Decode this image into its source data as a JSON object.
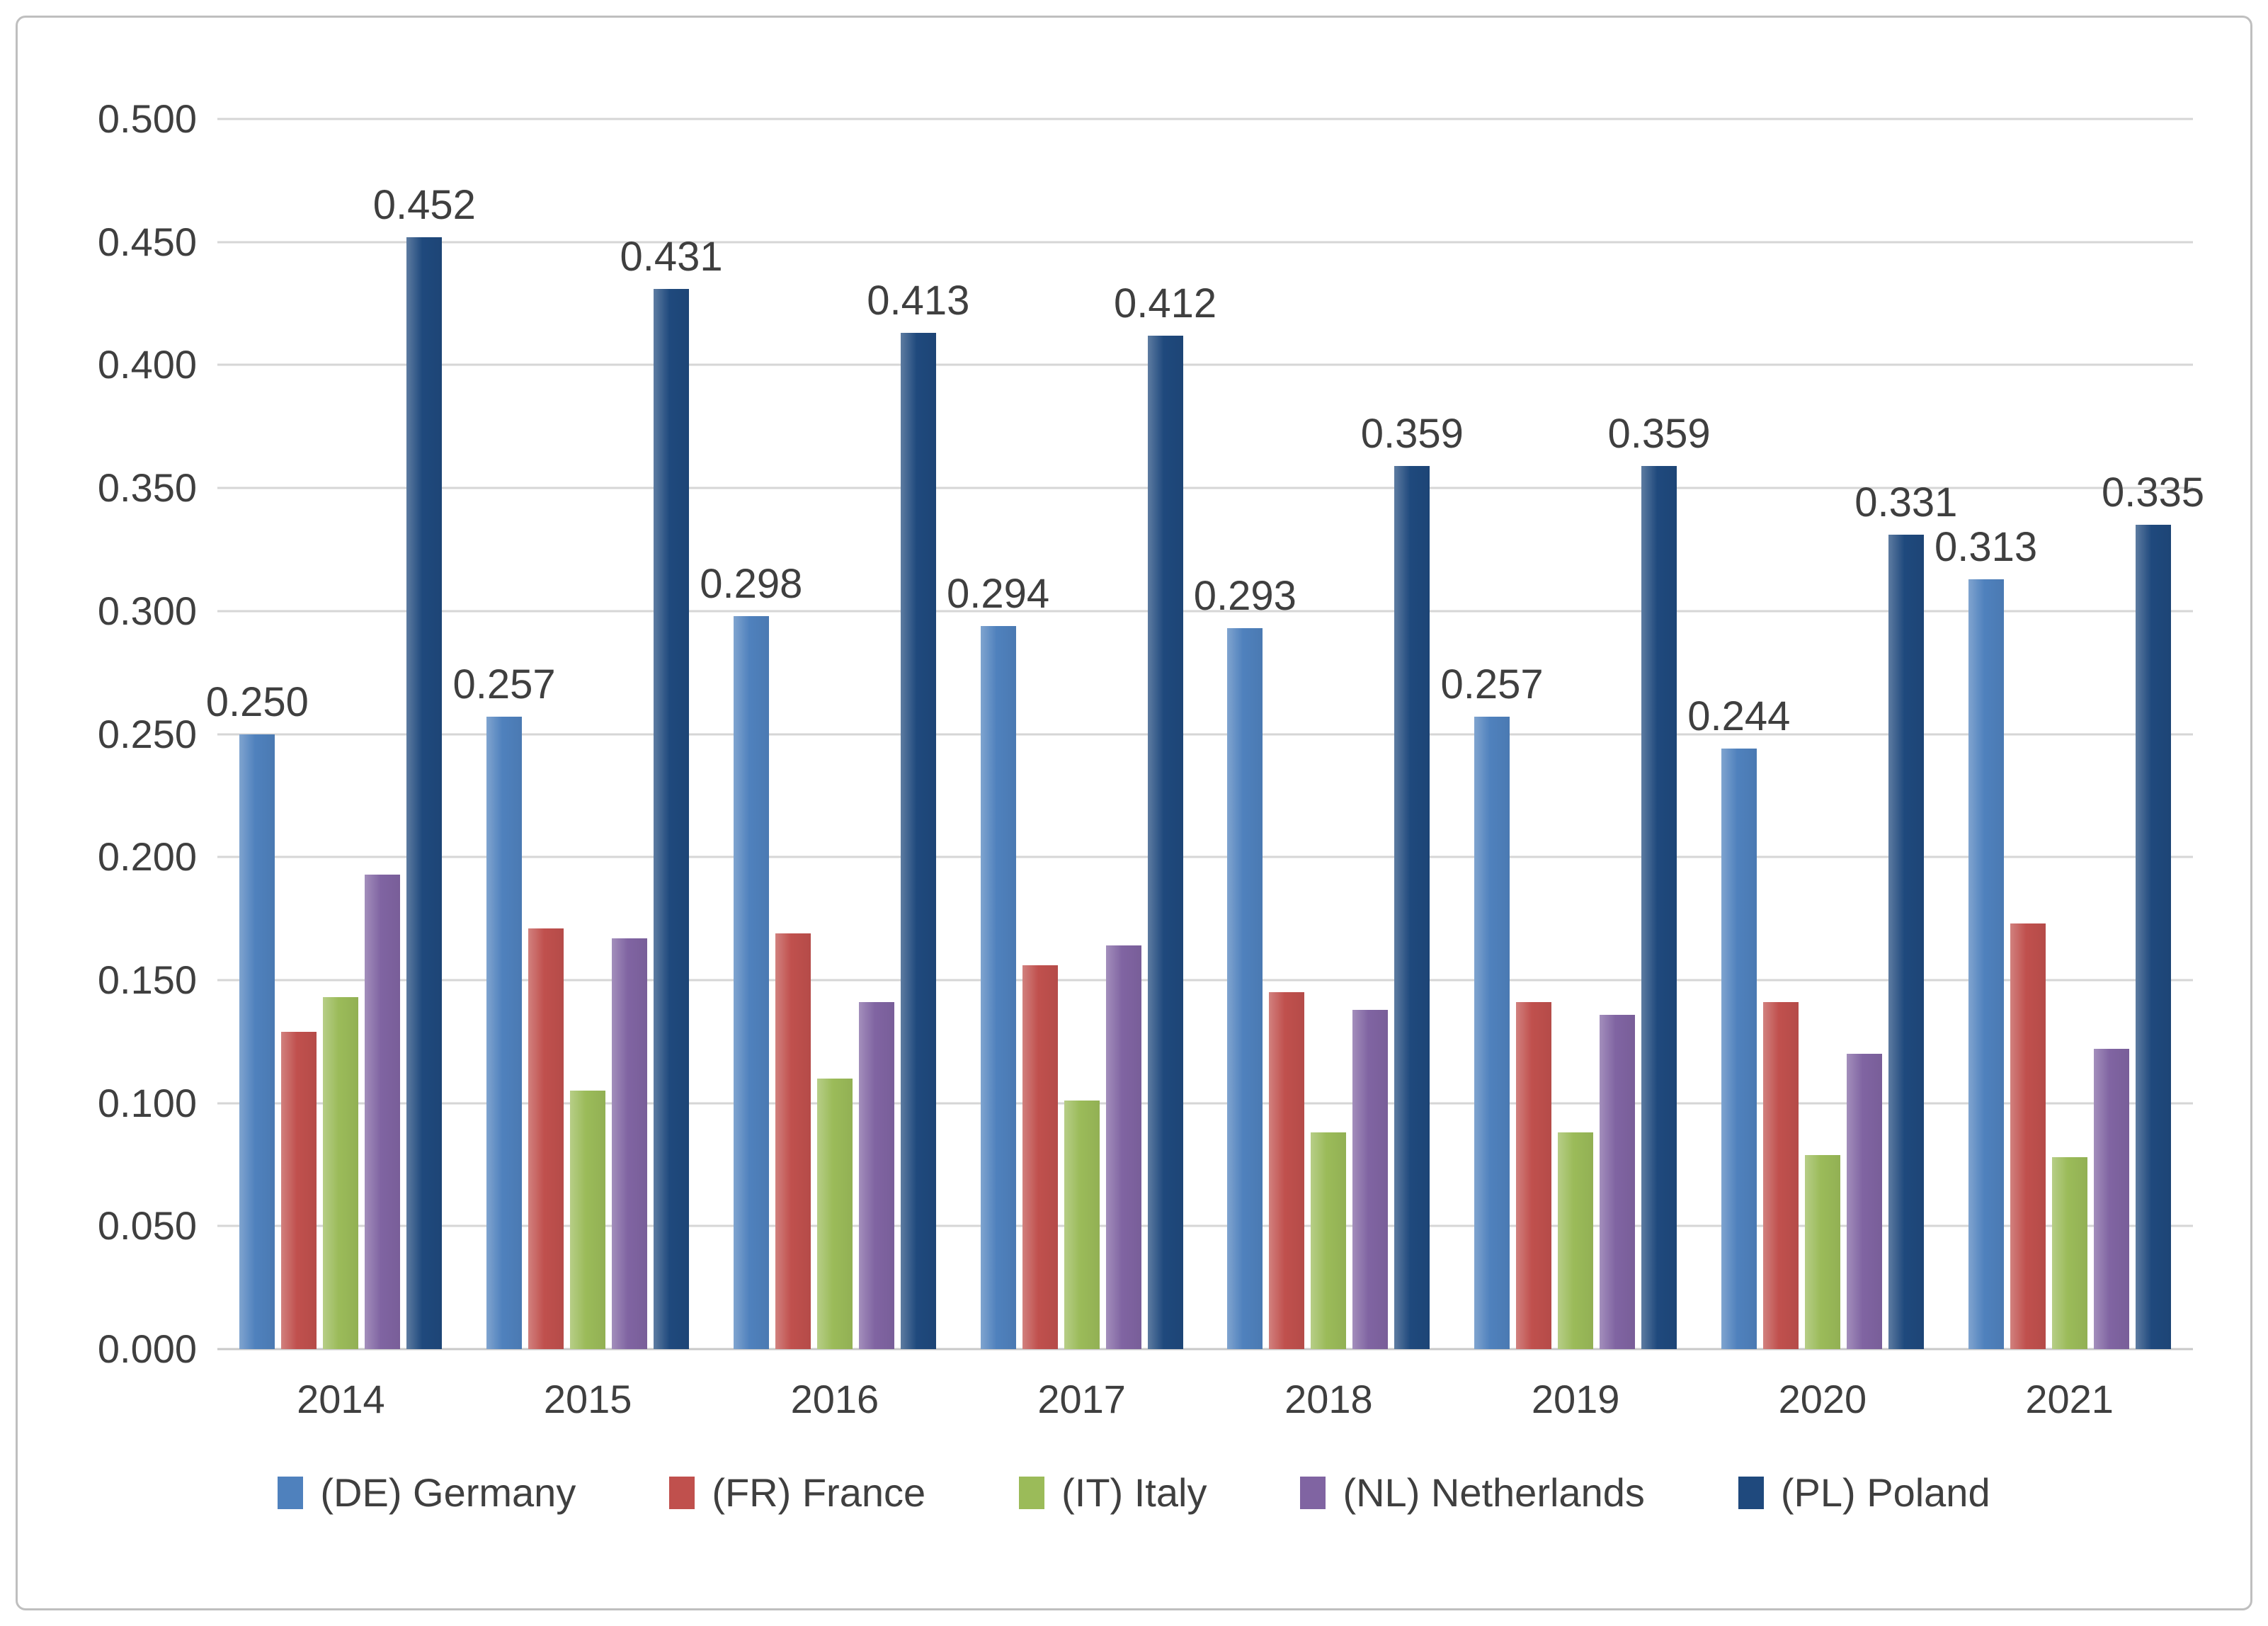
{
  "chart_data": {
    "type": "bar",
    "title": "",
    "categories": [
      "2014",
      "2015",
      "2016",
      "2017",
      "2018",
      "2019",
      "2020",
      "2021"
    ],
    "series": [
      {
        "name": "(DE) Germany",
        "color": "#4F81BD",
        "values": [
          0.25,
          0.257,
          0.298,
          0.294,
          0.293,
          0.257,
          0.244,
          0.313
        ],
        "data_labels": [
          "0.250",
          "0.257",
          "0.298",
          "0.294",
          "0.293",
          "0.257",
          "0.244",
          "0.313"
        ]
      },
      {
        "name": "(FR) France",
        "color": "#C0504D",
        "values": [
          0.129,
          0.171,
          0.169,
          0.156,
          0.145,
          0.141,
          0.141,
          0.173
        ],
        "data_labels": null
      },
      {
        "name": "(IT) Italy",
        "color": "#9BBB59",
        "values": [
          0.143,
          0.105,
          0.11,
          0.101,
          0.088,
          0.088,
          0.079,
          0.078
        ],
        "data_labels": null
      },
      {
        "name": "(NL) Netherlands",
        "color": "#8064A2",
        "values": [
          0.193,
          0.167,
          0.141,
          0.164,
          0.138,
          0.136,
          0.12,
          0.122
        ],
        "data_labels": null
      },
      {
        "name": "(PL) Poland",
        "color": "#1F497D",
        "values": [
          0.452,
          0.431,
          0.413,
          0.412,
          0.359,
          0.359,
          0.331,
          0.335
        ],
        "data_labels": [
          "0.452",
          "0.431",
          "0.413",
          "0.412",
          "0.359",
          "0.359",
          "0.331",
          "0.335"
        ]
      }
    ],
    "y_axis": {
      "min": 0,
      "max": 0.5,
      "step": 0.05,
      "tick_labels": [
        "0.500",
        "0.450",
        "0.400",
        "0.350",
        "0.300",
        "0.250",
        "0.200",
        "0.150",
        "0.100",
        "0.050",
        "0.000"
      ]
    },
    "legend_position": "bottom",
    "grid": true
  },
  "colors": {
    "gridline": "#D6D6D6",
    "axis_line": "#C9C9C9",
    "text": "#3F3F3F",
    "frame_border": "#BFBFBF",
    "background": "#FFFFFF"
  }
}
